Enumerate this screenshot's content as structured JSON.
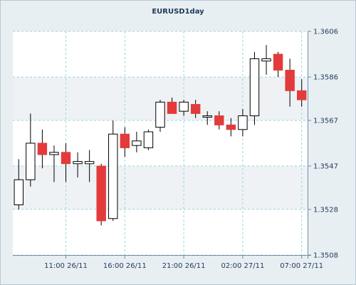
{
  "chart": {
    "title": "EURUSD1day",
    "colors": {
      "up_body": "#ffffff",
      "down_body": "#e33b3b",
      "outline": "#000000",
      "grid": "#9fd3d9",
      "axis": "#6f8fa8",
      "plot_bg_light": "#ffffff",
      "plot_bg_alt": "#eef2f5"
    }
  },
  "chart_data": {
    "type": "candlestick",
    "title": "EURUSD1day",
    "xlabel": "",
    "ylabel": "",
    "ylim": [
      1.3508,
      1.3606
    ],
    "y_axis_position": "right",
    "y_ticks": [
      "1.3508",
      "1.3528",
      "1.3547",
      "1.3567",
      "1.3586",
      "1.3606"
    ],
    "x_ticks": [
      {
        "label": "11:00 26/11",
        "index": 4.5
      },
      {
        "label": "16:00 26/11",
        "index": 9.5
      },
      {
        "label": "21:00 26/11",
        "index": 14.5
      },
      {
        "label": "02:00 27/11",
        "index": 19.5
      },
      {
        "label": "07:00 27/11",
        "index": 24.5
      }
    ],
    "grid": true,
    "candles": [
      {
        "open": 1.353,
        "high": 1.355,
        "low": 1.3528,
        "close": 1.3541
      },
      {
        "open": 1.3541,
        "high": 1.357,
        "low": 1.3538,
        "close": 1.3557
      },
      {
        "open": 1.3557,
        "high": 1.3563,
        "low": 1.3546,
        "close": 1.3552
      },
      {
        "open": 1.3552,
        "high": 1.3556,
        "low": 1.354,
        "close": 1.3553
      },
      {
        "open": 1.3553,
        "high": 1.3557,
        "low": 1.354,
        "close": 1.3548
      },
      {
        "open": 1.3548,
        "high": 1.3553,
        "low": 1.3542,
        "close": 1.3549
      },
      {
        "open": 1.3548,
        "high": 1.3554,
        "low": 1.354,
        "close": 1.3549
      },
      {
        "open": 1.3547,
        "high": 1.3548,
        "low": 1.3521,
        "close": 1.3523
      },
      {
        "open": 1.3524,
        "high": 1.3567,
        "low": 1.3523,
        "close": 1.3561
      },
      {
        "open": 1.3561,
        "high": 1.3564,
        "low": 1.3551,
        "close": 1.3555
      },
      {
        "open": 1.3556,
        "high": 1.3562,
        "low": 1.3553,
        "close": 1.3558
      },
      {
        "open": 1.3555,
        "high": 1.3563,
        "low": 1.3554,
        "close": 1.3562
      },
      {
        "open": 1.3564,
        "high": 1.3576,
        "low": 1.3562,
        "close": 1.3575
      },
      {
        "open": 1.3575,
        "high": 1.3577,
        "low": 1.357,
        "close": 1.357
      },
      {
        "open": 1.3571,
        "high": 1.3576,
        "low": 1.3569,
        "close": 1.3575
      },
      {
        "open": 1.3574,
        "high": 1.3576,
        "low": 1.3568,
        "close": 1.357
      },
      {
        "open": 1.3569,
        "high": 1.3571,
        "low": 1.3565,
        "close": 1.3569
      },
      {
        "open": 1.3569,
        "high": 1.3571,
        "low": 1.3563,
        "close": 1.3565
      },
      {
        "open": 1.3565,
        "high": 1.3568,
        "low": 1.356,
        "close": 1.3563
      },
      {
        "open": 1.3563,
        "high": 1.3572,
        "low": 1.356,
        "close": 1.3569
      },
      {
        "open": 1.3569,
        "high": 1.3597,
        "low": 1.3565,
        "close": 1.3594
      },
      {
        "open": 1.3593,
        "high": 1.36,
        "low": 1.3587,
        "close": 1.3594
      },
      {
        "open": 1.3596,
        "high": 1.3597,
        "low": 1.3586,
        "close": 1.3589
      },
      {
        "open": 1.3589,
        "high": 1.3594,
        "low": 1.3573,
        "close": 1.358
      },
      {
        "open": 1.358,
        "high": 1.3585,
        "low": 1.3573,
        "close": 1.3576
      }
    ]
  }
}
